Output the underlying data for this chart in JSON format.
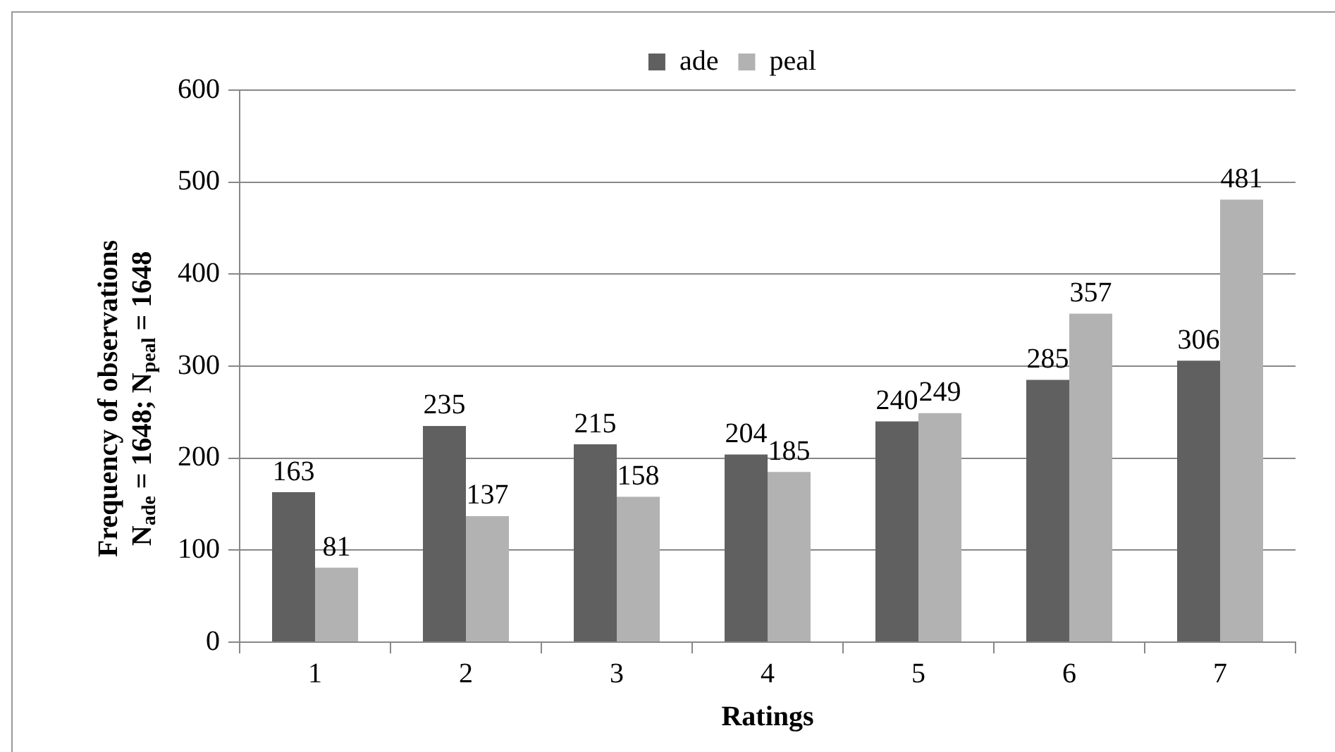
{
  "chart_data": {
    "type": "bar",
    "xlabel": "Ratings",
    "ylabel": "Frequency of observations\nN$_{ade}$ = 1648; N$_{peal}$ = 1648",
    "categories": [
      "1",
      "2",
      "3",
      "4",
      "5",
      "6",
      "7"
    ],
    "series": [
      {
        "name": "ade",
        "color": "#606060",
        "values": [
          163,
          235,
          215,
          204,
          240,
          285,
          306
        ]
      },
      {
        "name": "peal",
        "color": "#b2b2b2",
        "values": [
          81,
          137,
          158,
          185,
          249,
          357,
          481
        ]
      }
    ],
    "ylim": [
      0,
      600
    ],
    "yticks": [
      0,
      100,
      200,
      300,
      400,
      500,
      600
    ],
    "grid": "y",
    "legend": "top",
    "data_labels": true
  }
}
